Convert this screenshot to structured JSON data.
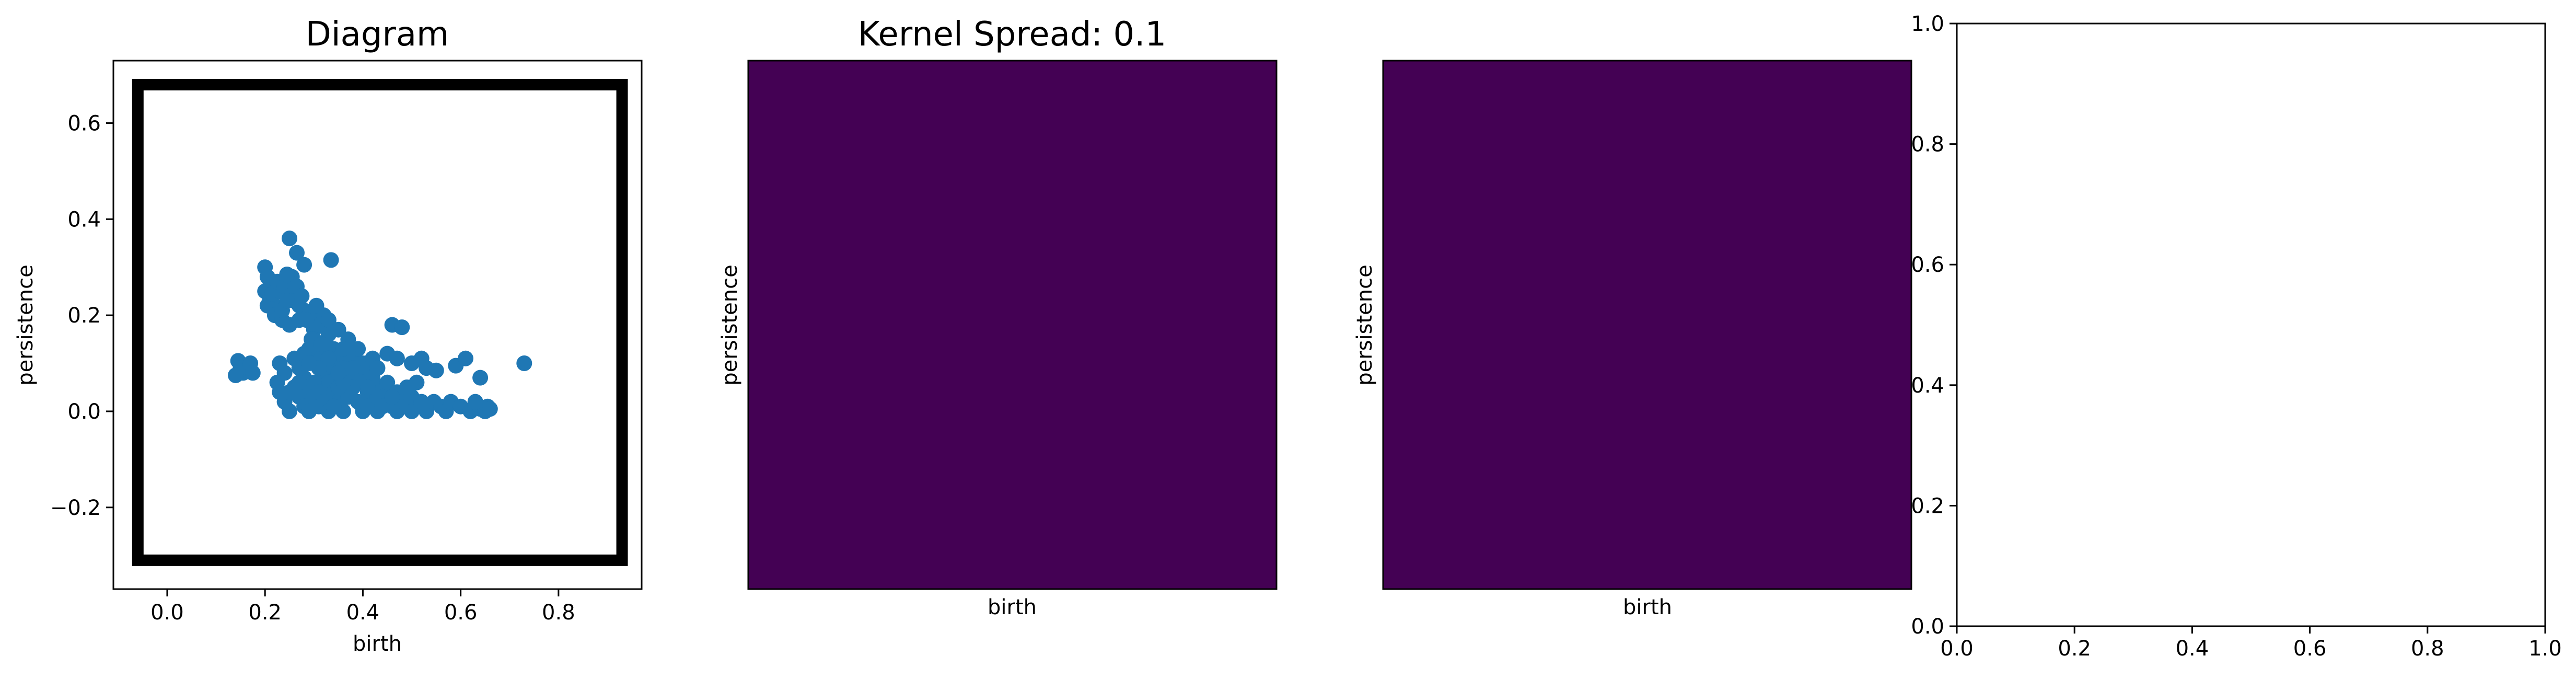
{
  "colors": {
    "scatter": "#1f77b4",
    "heatmap_fill": "#440154",
    "axis": "#000000",
    "box": "#000000"
  },
  "chart_data": [
    {
      "type": "scatter",
      "title": "Diagram",
      "xlabel": "birth",
      "ylabel": "persistence",
      "xlim": [
        -0.11,
        0.97
      ],
      "ylim": [
        -0.37,
        0.73
      ],
      "xticks": [
        "0.0",
        "0.2",
        "0.4",
        "0.6",
        "0.8"
      ],
      "yticks": [
        "−0.2",
        "0.0",
        "0.2",
        "0.4",
        "0.6"
      ],
      "box": {
        "x_min": -0.06,
        "x_max": 0.93,
        "y_min": -0.31,
        "y_max": 0.68
      },
      "grid": false,
      "points": [
        [
          0.145,
          0.105
        ],
        [
          0.15,
          0.09
        ],
        [
          0.155,
          0.08
        ],
        [
          0.16,
          0.095
        ],
        [
          0.165,
          0.085
        ],
        [
          0.14,
          0.075
        ],
        [
          0.17,
          0.1
        ],
        [
          0.175,
          0.08
        ],
        [
          0.2,
          0.3
        ],
        [
          0.205,
          0.28
        ],
        [
          0.21,
          0.26
        ],
        [
          0.2,
          0.25
        ],
        [
          0.21,
          0.235
        ],
        [
          0.22,
          0.22
        ],
        [
          0.205,
          0.22
        ],
        [
          0.215,
          0.245
        ],
        [
          0.23,
          0.25
        ],
        [
          0.225,
          0.27
        ],
        [
          0.24,
          0.26
        ],
        [
          0.25,
          0.24
        ],
        [
          0.26,
          0.23
        ],
        [
          0.27,
          0.22
        ],
        [
          0.28,
          0.21
        ],
        [
          0.29,
          0.2
        ],
        [
          0.255,
          0.28
        ],
        [
          0.265,
          0.26
        ],
        [
          0.25,
          0.36
        ],
        [
          0.265,
          0.33
        ],
        [
          0.28,
          0.305
        ],
        [
          0.245,
          0.285
        ],
        [
          0.335,
          0.315
        ],
        [
          0.22,
          0.2
        ],
        [
          0.235,
          0.19
        ],
        [
          0.25,
          0.18
        ],
        [
          0.27,
          0.19
        ],
        [
          0.3,
          0.17
        ],
        [
          0.23,
          0.1
        ],
        [
          0.24,
          0.08
        ],
        [
          0.225,
          0.06
        ],
        [
          0.23,
          0.04
        ],
        [
          0.24,
          0.02
        ],
        [
          0.25,
          0.0
        ],
        [
          0.26,
          0.11
        ],
        [
          0.27,
          0.09
        ],
        [
          0.28,
          0.07
        ],
        [
          0.29,
          0.05
        ],
        [
          0.3,
          0.03
        ],
        [
          0.31,
          0.01
        ],
        [
          0.26,
          0.05
        ],
        [
          0.27,
          0.03
        ],
        [
          0.28,
          0.01
        ],
        [
          0.29,
          0.0
        ],
        [
          0.3,
          0.1
        ],
        [
          0.31,
          0.12
        ],
        [
          0.32,
          0.14
        ],
        [
          0.33,
          0.16
        ],
        [
          0.34,
          0.13
        ],
        [
          0.35,
          0.11
        ],
        [
          0.36,
          0.09
        ],
        [
          0.37,
          0.07
        ],
        [
          0.32,
          0.08
        ],
        [
          0.33,
          0.06
        ],
        [
          0.34,
          0.04
        ],
        [
          0.35,
          0.02
        ],
        [
          0.36,
          0.0
        ],
        [
          0.37,
          0.03
        ],
        [
          0.38,
          0.05
        ],
        [
          0.39,
          0.08
        ],
        [
          0.4,
          0.06
        ],
        [
          0.41,
          0.04
        ],
        [
          0.42,
          0.02
        ],
        [
          0.43,
          0.0
        ],
        [
          0.38,
          0.11
        ],
        [
          0.39,
          0.13
        ],
        [
          0.4,
          0.1
        ],
        [
          0.41,
          0.09
        ],
        [
          0.42,
          0.07
        ],
        [
          0.44,
          0.05
        ],
        [
          0.45,
          0.03
        ],
        [
          0.46,
          0.01
        ],
        [
          0.47,
          0.0
        ],
        [
          0.45,
          0.06
        ],
        [
          0.47,
          0.04
        ],
        [
          0.48,
          0.02
        ],
        [
          0.3,
          0.15
        ],
        [
          0.31,
          0.18
        ],
        [
          0.32,
          0.2
        ],
        [
          0.305,
          0.22
        ],
        [
          0.33,
          0.19
        ],
        [
          0.35,
          0.17
        ],
        [
          0.29,
          0.13
        ],
        [
          0.28,
          0.12
        ],
        [
          0.3,
          0.06
        ],
        [
          0.31,
          0.04
        ],
        [
          0.32,
          0.02
        ],
        [
          0.33,
          0.0
        ],
        [
          0.34,
          0.01
        ],
        [
          0.35,
          0.05
        ],
        [
          0.36,
          0.06
        ],
        [
          0.37,
          0.12
        ],
        [
          0.38,
          0.09
        ],
        [
          0.39,
          0.02
        ],
        [
          0.4,
          0.0
        ],
        [
          0.41,
          0.01
        ],
        [
          0.43,
          0.03
        ],
        [
          0.44,
          0.01
        ],
        [
          0.46,
          0.03
        ],
        [
          0.49,
          0.01
        ],
        [
          0.5,
          0.0
        ],
        [
          0.5,
          0.03
        ],
        [
          0.52,
          0.02
        ],
        [
          0.53,
          0.0
        ],
        [
          0.49,
          0.05
        ],
        [
          0.51,
          0.06
        ],
        [
          0.545,
          0.02
        ],
        [
          0.56,
          0.01
        ],
        [
          0.57,
          0.0
        ],
        [
          0.58,
          0.02
        ],
        [
          0.6,
          0.01
        ],
        [
          0.62,
          0.0
        ],
        [
          0.63,
          0.01
        ],
        [
          0.64,
          0.005
        ],
        [
          0.65,
          0.0
        ],
        [
          0.655,
          0.01
        ],
        [
          0.66,
          0.005
        ],
        [
          0.63,
          0.02
        ],
        [
          0.46,
          0.18
        ],
        [
          0.48,
          0.175
        ],
        [
          0.45,
          0.12
        ],
        [
          0.5,
          0.1
        ],
        [
          0.53,
          0.09
        ],
        [
          0.47,
          0.11
        ],
        [
          0.55,
          0.085
        ],
        [
          0.59,
          0.095
        ],
        [
          0.61,
          0.11
        ],
        [
          0.64,
          0.07
        ],
        [
          0.73,
          0.1
        ],
        [
          0.52,
          0.11
        ],
        [
          0.42,
          0.11
        ],
        [
          0.43,
          0.09
        ],
        [
          0.41,
          0.05
        ],
        [
          0.37,
          0.15
        ],
        [
          0.36,
          0.13
        ],
        [
          0.34,
          0.09
        ],
        [
          0.35,
          0.08
        ],
        [
          0.33,
          0.11
        ],
        [
          0.31,
          0.09
        ],
        [
          0.29,
          0.1
        ],
        [
          0.27,
          0.06
        ],
        [
          0.25,
          0.04
        ],
        [
          0.235,
          0.21
        ],
        [
          0.245,
          0.23
        ],
        [
          0.275,
          0.24
        ],
        [
          0.285,
          0.19
        ],
        [
          0.295,
          0.15
        ],
        [
          0.315,
          0.14
        ]
      ]
    },
    {
      "type": "heatmap",
      "title": "Kernel Spread: 0.1",
      "xlabel": "birth",
      "ylabel": "persistence",
      "values": [
        [
          0
        ]
      ],
      "colormap": "viridis"
    },
    {
      "type": "heatmap",
      "title": "",
      "xlabel": "birth",
      "ylabel": "persistence",
      "values": [
        [
          0
        ]
      ],
      "colormap": "viridis"
    },
    {
      "type": "scatter",
      "title": "",
      "xlabel": "",
      "ylabel": "",
      "xlim": [
        0.0,
        1.0
      ],
      "ylim": [
        0.0,
        1.0
      ],
      "xticks": [
        "0.0",
        "0.2",
        "0.4",
        "0.6",
        "0.8",
        "1.0"
      ],
      "yticks": [
        "0.0",
        "0.2",
        "0.4",
        "0.6",
        "0.8",
        "1.0"
      ],
      "points": []
    }
  ]
}
